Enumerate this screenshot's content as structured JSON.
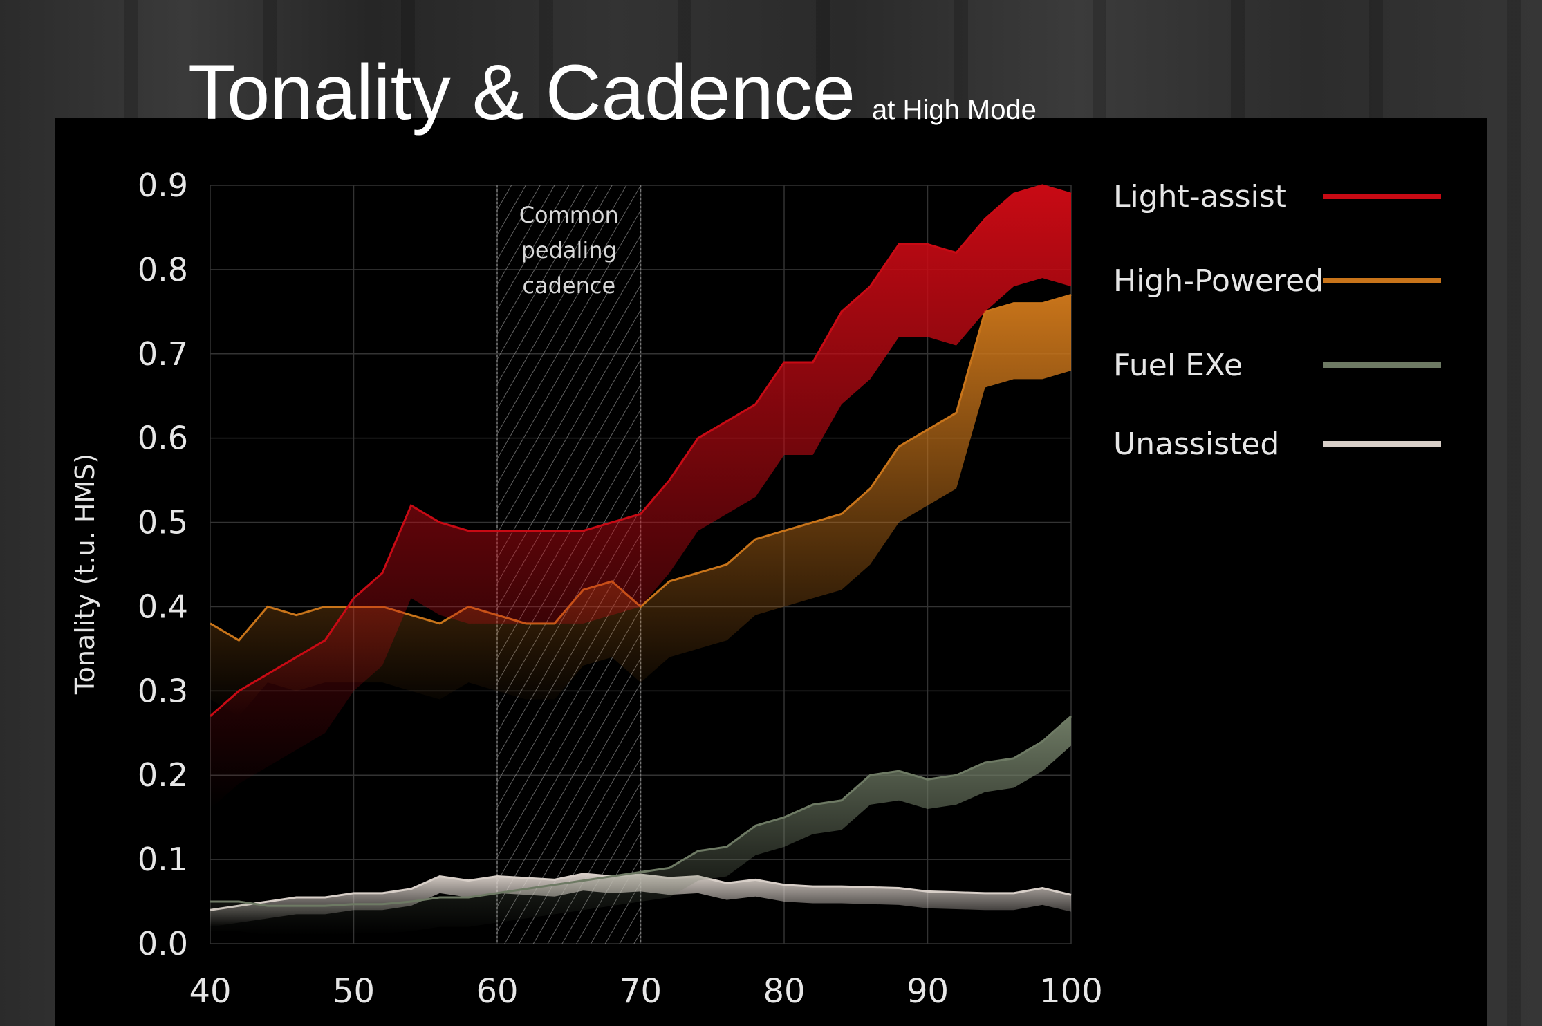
{
  "slide": {
    "title": "Tonality & Cadence",
    "subtitle": "at High Mode"
  },
  "colors": {
    "light_assist": "#c80a14",
    "high_powered": "#c8741a",
    "fuel_exe": "#6e7a64",
    "unassisted": "#d8cfc8",
    "grid": "#333333"
  },
  "chart_data": {
    "type": "line",
    "title": "Tonality & Cadence",
    "ylabel": "Tonality (t.u. HMS)",
    "xlabel": "",
    "xlim": [
      40,
      100
    ],
    "ylim": [
      0,
      0.9
    ],
    "x_ticks": [
      "40",
      "50",
      "60",
      "70",
      "80",
      "90",
      "100"
    ],
    "y_ticks": [
      "0.0",
      "0.1",
      "0.2",
      "0.3",
      "0.4",
      "0.5",
      "0.6",
      "0.7",
      "0.8",
      "0.9"
    ],
    "grid": true,
    "legend_position": "right",
    "annotation": {
      "lines": [
        "Common",
        "pedaling",
        "cadence"
      ],
      "x_start": 60,
      "x_end": 70
    },
    "x": [
      40,
      42,
      44,
      46,
      48,
      50,
      52,
      54,
      56,
      58,
      60,
      62,
      64,
      66,
      68,
      70,
      72,
      74,
      76,
      78,
      80,
      82,
      84,
      86,
      88,
      90,
      92,
      94,
      96,
      98,
      100
    ],
    "series": [
      {
        "name": "Light-assist",
        "color": "#c80a14",
        "values": [
          0.27,
          0.3,
          0.32,
          0.34,
          0.36,
          0.41,
          0.44,
          0.52,
          0.5,
          0.49,
          0.49,
          0.49,
          0.49,
          0.49,
          0.5,
          0.51,
          0.55,
          0.6,
          0.62,
          0.64,
          0.69,
          0.69,
          0.75,
          0.78,
          0.83,
          0.83,
          0.82,
          0.86,
          0.89,
          0.9,
          0.89
        ]
      },
      {
        "name": "High-Powered",
        "color": "#c8741a",
        "values": [
          0.38,
          0.36,
          0.4,
          0.39,
          0.4,
          0.4,
          0.4,
          0.39,
          0.38,
          0.4,
          0.39,
          0.38,
          0.38,
          0.42,
          0.43,
          0.4,
          0.43,
          0.44,
          0.45,
          0.48,
          0.49,
          0.5,
          0.51,
          0.54,
          0.59,
          0.61,
          0.63,
          0.75,
          0.76,
          0.76,
          0.77
        ]
      },
      {
        "name": "Fuel EXe",
        "color": "#6e7a64",
        "values": [
          0.05,
          0.05,
          0.045,
          0.045,
          0.045,
          0.047,
          0.047,
          0.05,
          0.055,
          0.055,
          0.06,
          0.065,
          0.07,
          0.075,
          0.08,
          0.085,
          0.09,
          0.11,
          0.115,
          0.14,
          0.15,
          0.165,
          0.17,
          0.2,
          0.205,
          0.195,
          0.2,
          0.215,
          0.22,
          0.24,
          0.27
        ]
      },
      {
        "name": "Unassisted",
        "color": "#d8cfc8",
        "values": [
          0.04,
          0.045,
          0.05,
          0.055,
          0.055,
          0.06,
          0.06,
          0.065,
          0.08,
          0.075,
          0.08,
          0.078,
          0.076,
          0.083,
          0.08,
          0.082,
          0.078,
          0.08,
          0.072,
          0.076,
          0.07,
          0.068,
          0.068,
          0.067,
          0.066,
          0.062,
          0.061,
          0.06,
          0.06,
          0.066,
          0.058
        ]
      }
    ]
  }
}
